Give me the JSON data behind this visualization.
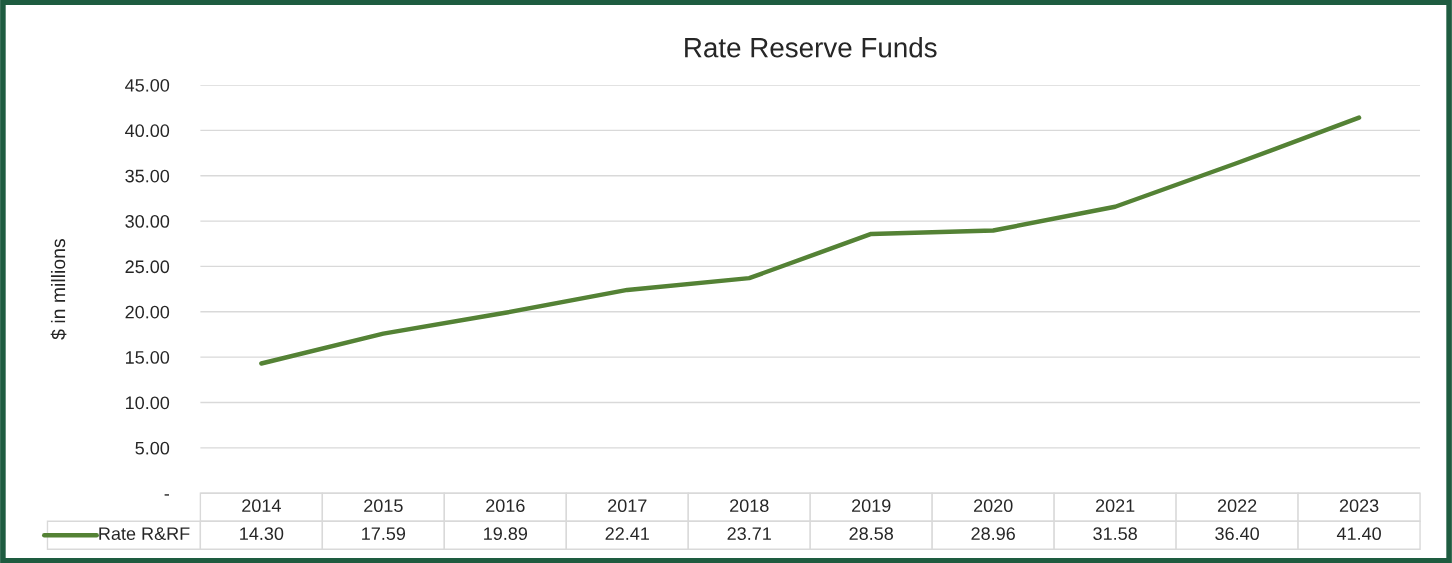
{
  "chart_data": {
    "type": "line",
    "title": "Rate Reserve Funds",
    "ylabel": "$ in millions",
    "categories": [
      "2014",
      "2015",
      "2016",
      "2017",
      "2018",
      "2019",
      "2020",
      "2021",
      "2022",
      "2023"
    ],
    "series": [
      {
        "name": "Rate R&RF",
        "color": "#548235",
        "values": [
          14.3,
          17.59,
          19.89,
          22.41,
          23.71,
          28.58,
          28.96,
          31.58,
          36.4,
          41.4
        ],
        "value_labels": [
          "14.30",
          "17.59",
          "19.89",
          "22.41",
          "23.71",
          "28.58",
          "28.96",
          "31.58",
          "36.40",
          "41.40"
        ]
      }
    ],
    "ylim": [
      0,
      45
    ],
    "yticks": [
      {
        "value": 0,
        "label": "-"
      },
      {
        "value": 5,
        "label": "5.00"
      },
      {
        "value": 10,
        "label": "10.00"
      },
      {
        "value": 15,
        "label": "15.00"
      },
      {
        "value": 20,
        "label": "20.00"
      },
      {
        "value": 25,
        "label": "25.00"
      },
      {
        "value": 30,
        "label": "30.00"
      },
      {
        "value": 35,
        "label": "35.00"
      },
      {
        "value": 40,
        "label": "40.00"
      },
      {
        "value": 45,
        "label": "45.00"
      }
    ],
    "grid": "y",
    "legend": "bottom",
    "marker": "none",
    "line_style": "solid"
  }
}
